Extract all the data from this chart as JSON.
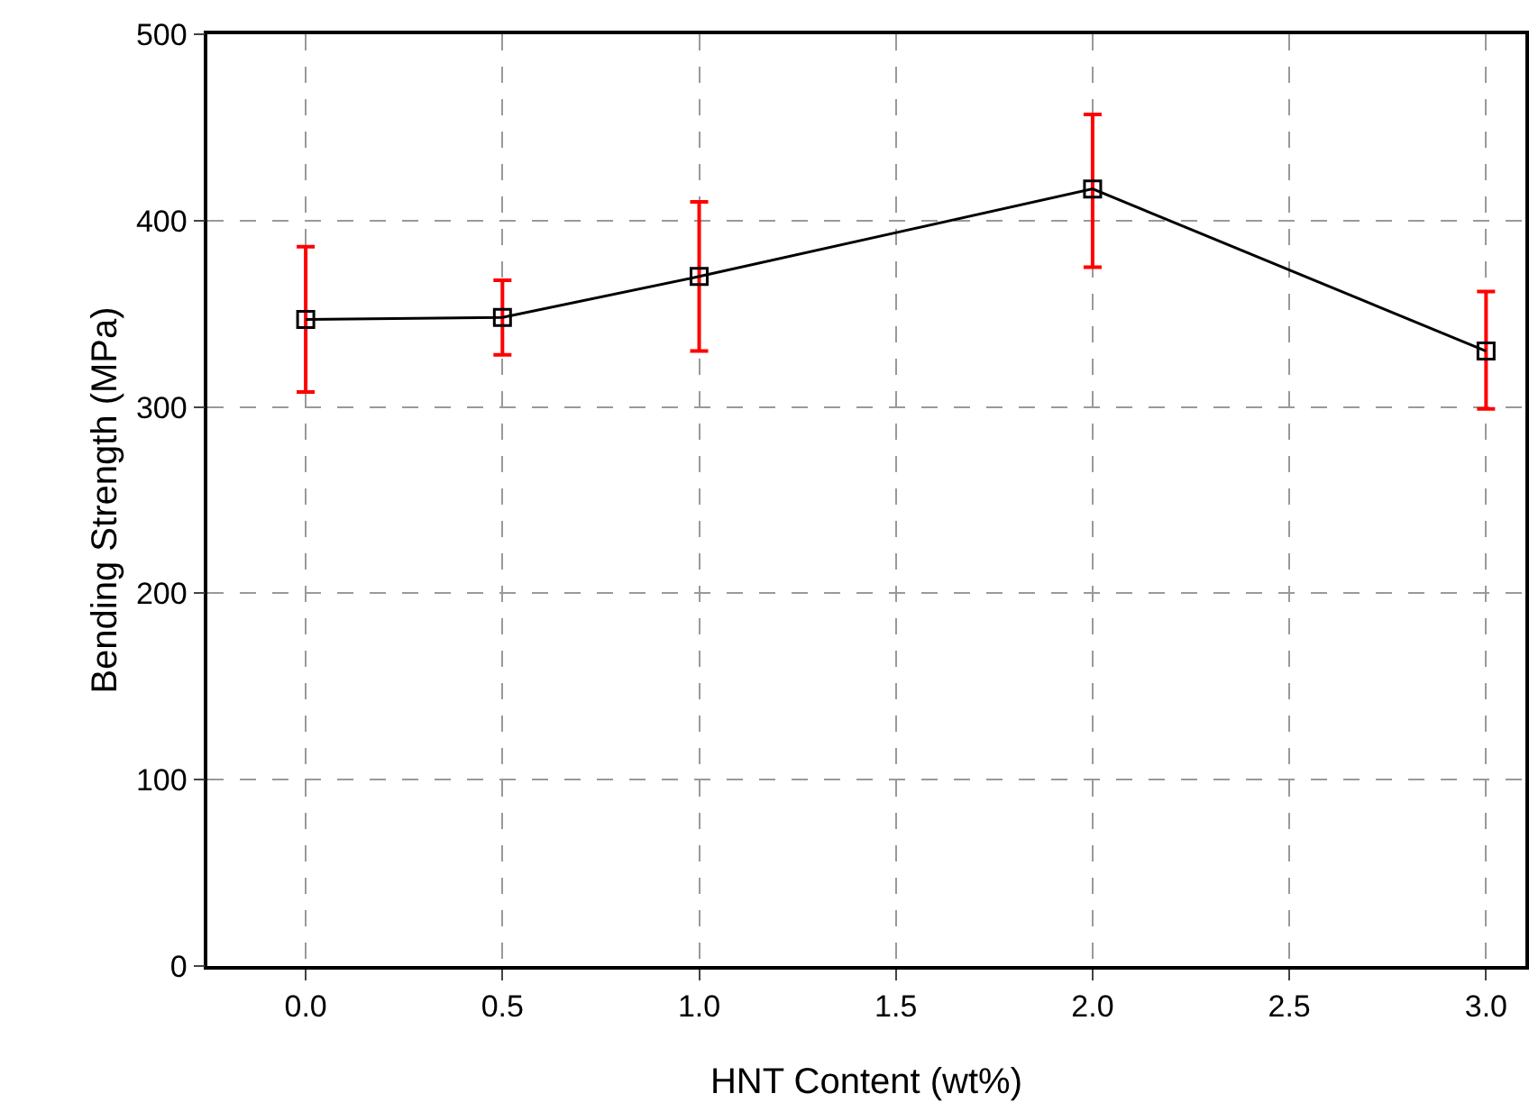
{
  "chart_data": {
    "type": "line",
    "xlabel": "HNT Content (wt%)",
    "ylabel": "Bending Strength (MPa)",
    "x": [
      0,
      0.5,
      1,
      2,
      3
    ],
    "series": [
      {
        "color": "#000000",
        "values": [
          347,
          348,
          370,
          417,
          330
        ],
        "errors": [
          [
            308,
            386
          ],
          [
            328,
            368
          ],
          [
            330,
            410
          ],
          [
            375,
            457
          ],
          [
            299,
            362
          ]
        ]
      }
    ],
    "xlim": [
      -0.25,
      3.1
    ],
    "xticks": [
      {
        "value": 0,
        "label": "0.0"
      },
      0.5,
      {
        "value": 1,
        "label": "1.0"
      },
      1.5,
      {
        "value": 2,
        "label": "2.0"
      },
      2.5,
      {
        "value": 3,
        "label": "3.0"
      }
    ],
    "ylim": [
      0,
      500
    ],
    "yticks": [
      0,
      100,
      200,
      300,
      400,
      500
    ],
    "grid": true,
    "marker": "square",
    "line_style": "solid"
  }
}
